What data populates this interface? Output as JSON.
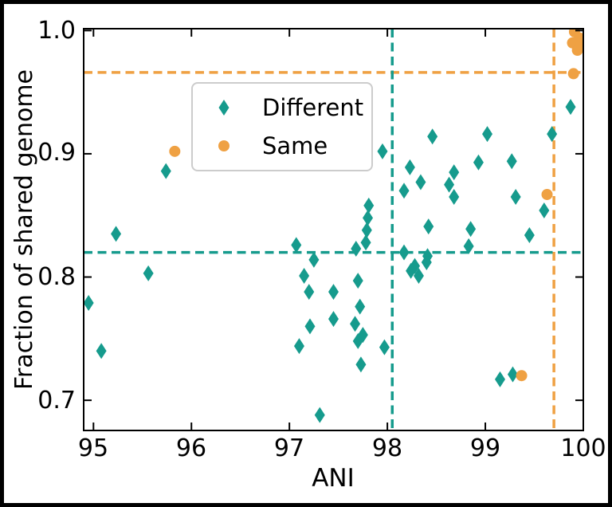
{
  "figure": {
    "background": "#ffffff",
    "frame_color": "#000000"
  },
  "chart_data": {
    "type": "scatter",
    "title": "",
    "xlabel": "ANI",
    "ylabel": "Fraction of shared genome",
    "xlim": [
      94.9,
      100.0
    ],
    "ylim": [
      0.6755,
      1.0015
    ],
    "grid": false,
    "legend_position": "upper-left-inside",
    "x_ticks": [
      95,
      96,
      97,
      98,
      99,
      100
    ],
    "x_tick_labels": [
      "95",
      "96",
      "97",
      "98",
      "99",
      "100"
    ],
    "y_ticks": [
      1.0,
      0.9,
      0.8,
      0.7
    ],
    "y_tick_labels": [
      "1.0",
      "0.9",
      "0.8",
      "0.7"
    ],
    "axis_color": "#000000",
    "series": [
      {
        "name": "Different",
        "marker": "diamond",
        "color": "#169b8d",
        "points": [
          [
            94.95,
            0.779
          ],
          [
            95.08,
            0.74
          ],
          [
            95.23,
            0.835
          ],
          [
            95.56,
            0.803
          ],
          [
            95.74,
            0.886
          ],
          [
            97.07,
            0.826
          ],
          [
            97.25,
            0.814
          ],
          [
            97.15,
            0.801
          ],
          [
            97.2,
            0.788
          ],
          [
            97.21,
            0.76
          ],
          [
            97.1,
            0.744
          ],
          [
            97.31,
            0.688
          ],
          [
            97.45,
            0.788
          ],
          [
            97.45,
            0.766
          ],
          [
            97.7,
            0.797
          ],
          [
            97.72,
            0.776
          ],
          [
            97.67,
            0.762
          ],
          [
            97.75,
            0.753
          ],
          [
            97.7,
            0.748
          ],
          [
            97.97,
            0.743
          ],
          [
            97.73,
            0.729
          ],
          [
            97.68,
            0.823
          ],
          [
            97.81,
            0.858
          ],
          [
            97.8,
            0.848
          ],
          [
            97.79,
            0.838
          ],
          [
            97.78,
            0.828
          ],
          [
            97.95,
            0.902
          ],
          [
            98.17,
            0.82
          ],
          [
            98.24,
            0.805
          ],
          [
            98.28,
            0.809
          ],
          [
            98.32,
            0.801
          ],
          [
            98.4,
            0.812
          ],
          [
            98.41,
            0.817
          ],
          [
            98.42,
            0.841
          ],
          [
            98.17,
            0.87
          ],
          [
            98.23,
            0.889
          ],
          [
            98.34,
            0.877
          ],
          [
            98.46,
            0.914
          ],
          [
            98.63,
            0.875
          ],
          [
            98.68,
            0.885
          ],
          [
            98.68,
            0.865
          ],
          [
            98.85,
            0.839
          ],
          [
            98.83,
            0.825
          ],
          [
            98.93,
            0.893
          ],
          [
            99.02,
            0.916
          ],
          [
            99.27,
            0.894
          ],
          [
            99.31,
            0.865
          ],
          [
            99.45,
            0.834
          ],
          [
            99.6,
            0.854
          ],
          [
            99.68,
            0.916
          ],
          [
            99.87,
            0.938
          ],
          [
            99.15,
            0.717
          ],
          [
            99.28,
            0.721
          ]
        ]
      },
      {
        "name": "Same",
        "marker": "circle",
        "color": "#efa143",
        "points": [
          [
            95.83,
            0.902
          ],
          [
            99.37,
            0.72
          ],
          [
            99.63,
            0.867
          ],
          [
            99.9,
            0.965
          ],
          [
            99.91,
            0.999
          ],
          [
            99.96,
            0.994
          ],
          [
            99.89,
            0.99
          ],
          [
            99.94,
            0.984
          ],
          [
            99.98,
            0.989
          ]
        ]
      }
    ],
    "ref_lines": [
      {
        "orientation": "horizontal",
        "value": 0.966,
        "color": "#efa143",
        "style": "dashed"
      },
      {
        "orientation": "vertical",
        "value": 99.7,
        "color": "#efa143",
        "style": "dashed"
      },
      {
        "orientation": "horizontal",
        "value": 0.82,
        "color": "#169b8d",
        "style": "dashed"
      },
      {
        "orientation": "vertical",
        "value": 98.05,
        "color": "#169b8d",
        "style": "dashed"
      }
    ]
  }
}
